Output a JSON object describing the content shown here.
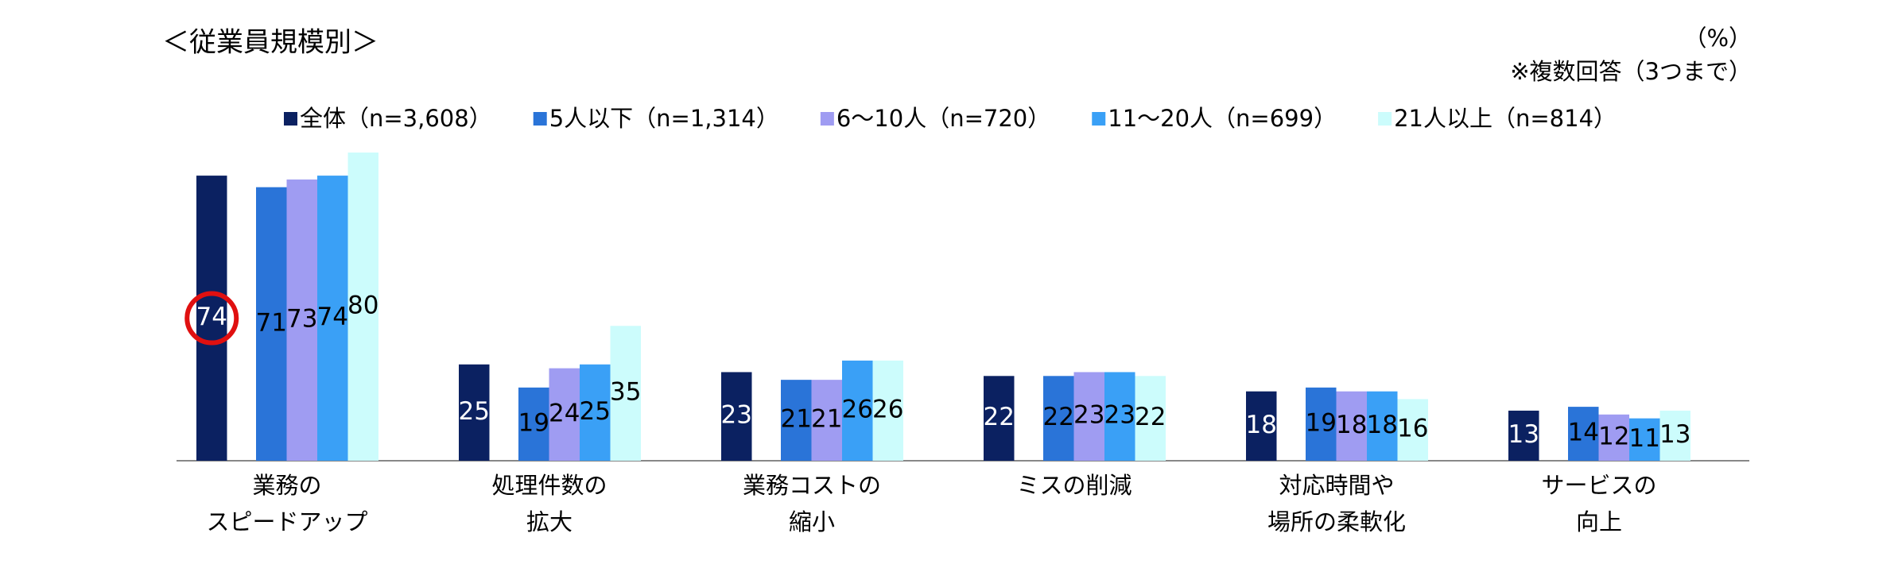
{
  "chart_data": {
    "type": "bar",
    "title": "＜従業員規模別＞",
    "unit": "（%）",
    "note": "※複数回答（3つまで）",
    "categories": [
      [
        "業務の",
        "スピードアップ"
      ],
      [
        "処理件数の",
        "拡大"
      ],
      [
        "業務コストの",
        "縮小"
      ],
      [
        "ミスの削減"
      ],
      [
        "対応時間や",
        "場所の柔軟化"
      ],
      [
        "サービスの",
        "向上"
      ]
    ],
    "series": [
      {
        "name": "全体（n=3,608）",
        "color": "#0b2161",
        "values": [
          74,
          25,
          23,
          22,
          18,
          13
        ]
      },
      {
        "name": "5人以下（n=1,314）",
        "color": "#2a74d8",
        "values": [
          71,
          19,
          21,
          22,
          19,
          14
        ]
      },
      {
        "name": "6～10人（n=720）",
        "color": "#9f9cf2",
        "values": [
          73,
          24,
          21,
          23,
          18,
          12
        ]
      },
      {
        "name": "11～20人（n=699）",
        "color": "#3aa0f6",
        "values": [
          74,
          25,
          26,
          23,
          18,
          11
        ]
      },
      {
        "name": "21人以上（n=814）",
        "color": "#ccfcfc",
        "values": [
          80,
          35,
          26,
          22,
          16,
          13
        ]
      }
    ]
  }
}
